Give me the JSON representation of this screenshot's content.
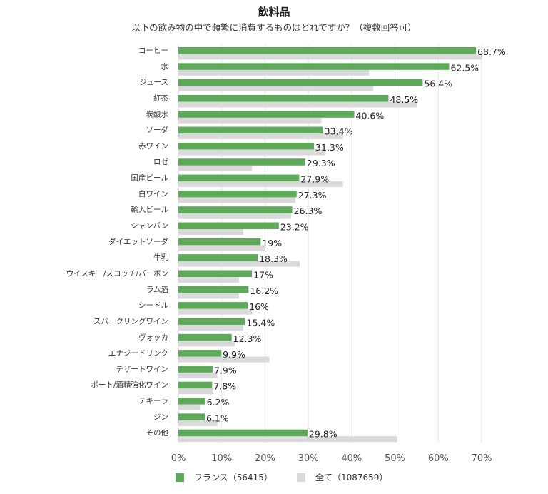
{
  "colors": {
    "france": "#5faa5a",
    "all": "#d9d9d9",
    "grid": "#e6e6e6"
  },
  "chart_data": {
    "type": "bar",
    "orientation": "horizontal",
    "title": "飲料品",
    "subtitle": "以下の飲み物の中で頻繁に消費するものはどれですか？（複数回答可）",
    "categories": [
      "コーヒー",
      "水",
      "ジュース",
      "紅茶",
      "炭酸水",
      "ソーダ",
      "赤ワイン",
      "ロゼ",
      "国産ビール",
      "白ワイン",
      "輸入ビール",
      "シャンパン",
      "ダイエットソーダ",
      "牛乳",
      "ウイスキー/スコッチ/バーボン",
      "ラム酒",
      "シードル",
      "スパークリングワイン",
      "ヴォッカ",
      "エナジードリンク",
      "デザートワイン",
      "ポート/酒精強化ワイン",
      "テキーラ",
      "ジン",
      "その他"
    ],
    "series": [
      {
        "name": "フランス（56415）",
        "values": [
          68.7,
          62.5,
          56.4,
          48.5,
          40.6,
          33.4,
          31.3,
          29.3,
          27.9,
          27.3,
          26.3,
          23.2,
          19,
          18.3,
          17,
          16.2,
          16,
          15.4,
          12.3,
          9.9,
          7.9,
          7.8,
          6.2,
          6.1,
          29.8
        ],
        "labels": [
          "68.7%",
          "62.5%",
          "56.4%",
          "48.5%",
          "40.6%",
          "33.4%",
          "31.3%",
          "29.3%",
          "27.9%",
          "27.3%",
          "26.3%",
          "23.2%",
          "19%",
          "18.3%",
          "17%",
          "16.2%",
          "16%",
          "15.4%",
          "12.3%",
          "9.9%",
          "7.9%",
          "7.8%",
          "6.2%",
          "6.1%",
          "29.8%"
        ]
      },
      {
        "name": "全て（1087659）",
        "values": [
          70,
          44,
          45,
          55,
          33,
          38,
          34,
          17,
          38,
          27,
          26,
          15,
          20,
          28,
          14,
          14,
          17,
          15,
          13,
          21,
          9,
          8,
          5,
          9,
          50.5
        ]
      }
    ],
    "xlim": [
      0,
      70
    ],
    "xticks": [
      "0%",
      "10%",
      "20%",
      "30%",
      "40%",
      "50%",
      "60%",
      "70%"
    ],
    "grid": true,
    "legend_position": "bottom"
  }
}
